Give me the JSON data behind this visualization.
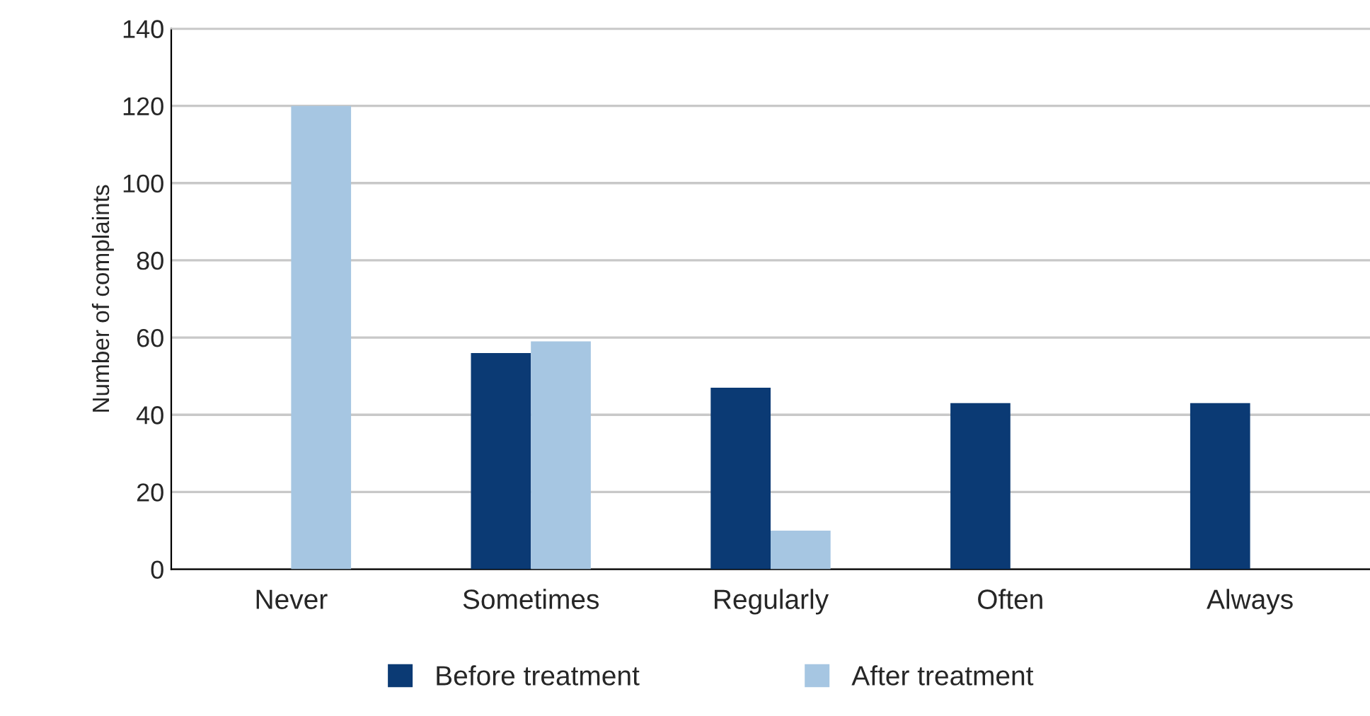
{
  "chart_data": {
    "type": "bar",
    "ylabel": "Number of complaints",
    "categories": [
      "Never",
      "Sometimes",
      "Regularly",
      "Often",
      "Always"
    ],
    "series": [
      {
        "name": "Before treatment",
        "color": "#0b3a74",
        "values": [
          null,
          56,
          47,
          43,
          43
        ]
      },
      {
        "name": "After treatment",
        "color": "#a6c6e2",
        "values": [
          120,
          59,
          10,
          null,
          null
        ]
      }
    ],
    "ylim": [
      0,
      140
    ],
    "yticks": [
      0,
      20,
      40,
      60,
      80,
      100,
      120,
      140
    ],
    "grid": "y",
    "legend": "bottom"
  }
}
